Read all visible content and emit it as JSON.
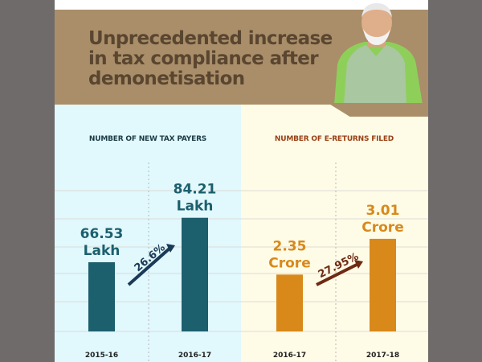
{
  "header": {
    "title": "Unprecedented increase in tax compliance after demonetisation"
  },
  "colors": {
    "banner": "#a98e69",
    "title_text": "#5a4630",
    "left_bg": "#e1f8fd",
    "right_bg": "#fefbe7",
    "teal": "#1c5f6d",
    "orange": "#d8891a",
    "arrow_left": "#1b3a58",
    "arrow_right": "#6e2a12"
  },
  "chart_data": [
    {
      "type": "bar",
      "title": "NUMBER OF NEW TAX PAYERS",
      "categories": [
        "2015-16",
        "2016-17"
      ],
      "values": [
        66.53,
        84.21
      ],
      "unit": "Lakh",
      "labels": [
        "66.53",
        "84.21"
      ],
      "growth_label": "26.6%",
      "ylim": [
        39,
        95
      ],
      "grid": true
    },
    {
      "type": "bar",
      "title": "NUMBER OF E-RETURNS FILED",
      "categories": [
        "2016-17",
        "2017-18"
      ],
      "values": [
        2.35,
        3.01
      ],
      "unit": "Crore",
      "labels": [
        "2.35",
        "3.01"
      ],
      "growth_label": "27.95%",
      "ylim": [
        1.3,
        3.9
      ],
      "grid": true
    }
  ]
}
